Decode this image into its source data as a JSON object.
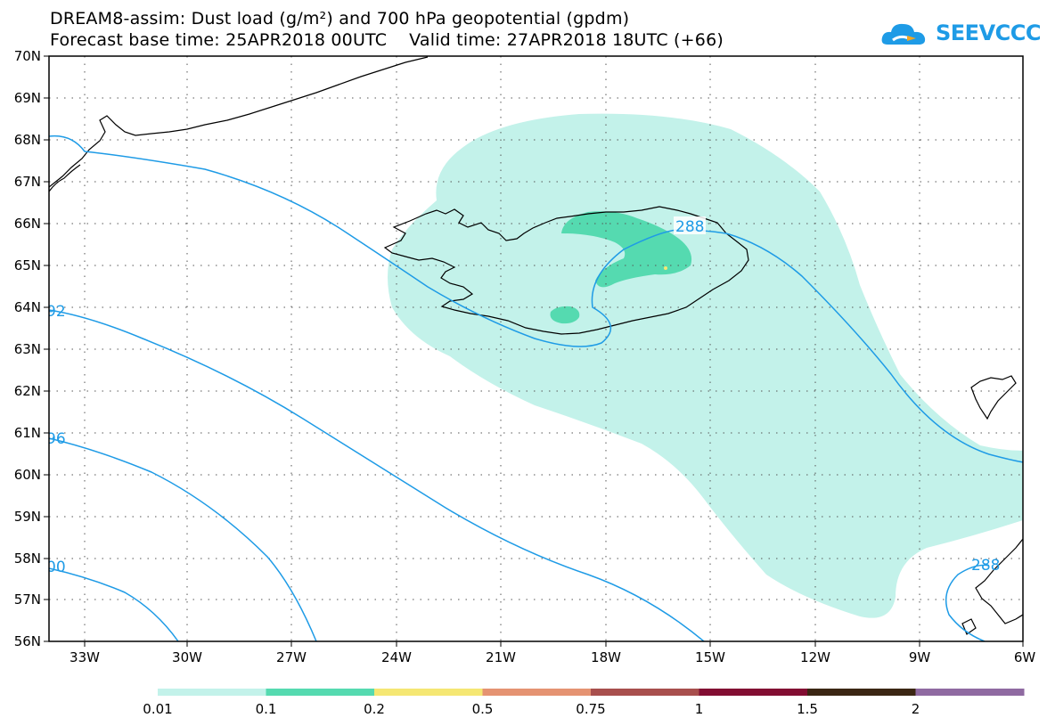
{
  "title_line1": "DREAM8-assim: Dust load (g/m²) and 700 hPa geopotential (gpdm)",
  "title_line2": "Forecast base time: 25APR2018 00UTC    Valid time: 27APR2018 18UTC (+66)",
  "logo_text": "SEEVCCC",
  "latitudes": [
    "70N",
    "69N",
    "68N",
    "67N",
    "66N",
    "65N",
    "64N",
    "63N",
    "62N",
    "61N",
    "60N",
    "59N",
    "58N",
    "57N",
    "56N"
  ],
  "longitudes": [
    "33W",
    "30W",
    "27W",
    "24W",
    "21W",
    "18W",
    "15W",
    "12W",
    "9W",
    "6W"
  ],
  "contour_labels": [
    "288",
    "92",
    "96",
    "00",
    "288"
  ],
  "colorbar": {
    "colors": [
      "#c3f2ea",
      "#55dab0",
      "#f5e773",
      "#e59372",
      "#a84f4d",
      "#820d32",
      "#3b2613",
      "#8f6aa1"
    ],
    "labels": [
      "0.01",
      "0.1",
      "0.2",
      "0.5",
      "0.75",
      "1",
      "1.5",
      "2"
    ]
  },
  "colors": {
    "contour": "#1e9be6",
    "dust_low": "#c3f2ea",
    "dust_mid": "#55dab0",
    "dust_high": "#f5e773"
  }
}
